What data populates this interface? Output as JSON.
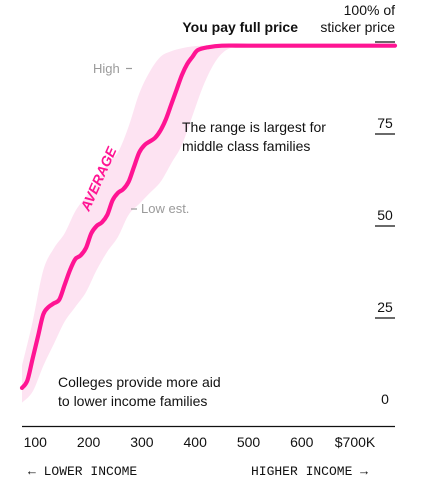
{
  "chart_data": {
    "type": "area",
    "x_unit_prefix": "$",
    "x_unit_suffix": "K",
    "xlim": [
      75,
      775
    ],
    "ylim": [
      0,
      100
    ],
    "x_ticks": [
      "100",
      "200",
      "300",
      "400",
      "500",
      "600",
      "$700K"
    ],
    "x_tick_values": [
      100,
      200,
      300,
      400,
      500,
      600,
      700
    ],
    "y_ticks": [
      "0",
      "25",
      "50",
      "75"
    ],
    "y_tick_values": [
      0,
      25,
      50,
      75
    ],
    "y_top_label": [
      "100% of",
      "sticker price"
    ],
    "x_dir_left": "← LOWER INCOME",
    "x_dir_right": "HIGHER INCOME →",
    "annotations": {
      "full_price": "You pay full price",
      "high": "High",
      "low": "Low est.",
      "average": "AVERAGE",
      "middle_note": [
        "The range is largest for",
        "middle class families"
      ],
      "low_note": [
        "Colleges provide more aid",
        "to lower income families"
      ]
    },
    "series": [
      {
        "name": "AVERAGE",
        "color": "#ff1493",
        "x": [
          75,
          85,
          95,
          105,
          115,
          125,
          135,
          145,
          155,
          165,
          175,
          185,
          195,
          205,
          215,
          225,
          235,
          245,
          255,
          265,
          275,
          285,
          295,
          305,
          315,
          325,
          335,
          345,
          355,
          365,
          375,
          385,
          395,
          405,
          425,
          450,
          500,
          600,
          700,
          775
        ],
        "y": [
          6,
          8,
          14,
          20,
          26,
          28,
          29,
          30,
          34,
          38,
          41,
          42,
          44,
          48,
          50,
          51,
          53,
          57,
          59,
          60,
          62,
          66,
          70,
          72,
          73,
          74,
          76,
          79,
          83,
          87,
          91,
          94,
          96,
          97.8,
          98.6,
          99,
          99,
          99,
          99,
          99
        ]
      },
      {
        "name": "range",
        "color": "#fde3f2",
        "x": [
          75,
          95,
          115,
          135,
          155,
          175,
          195,
          215,
          235,
          255,
          275,
          295,
          315,
          335,
          355,
          375,
          395,
          415,
          435,
          455,
          480
        ],
        "high": [
          12,
          24,
          38,
          44,
          48,
          54,
          58,
          62,
          67,
          70,
          77,
          86,
          92,
          96,
          97.5,
          98.3,
          98.8,
          99,
          99,
          99,
          99
        ],
        "low": [
          2,
          5,
          12,
          18,
          24,
          28,
          32,
          38,
          43,
          47,
          53,
          56,
          59,
          62,
          67,
          72,
          80,
          88,
          94,
          97.5,
          99
        ]
      }
    ]
  }
}
